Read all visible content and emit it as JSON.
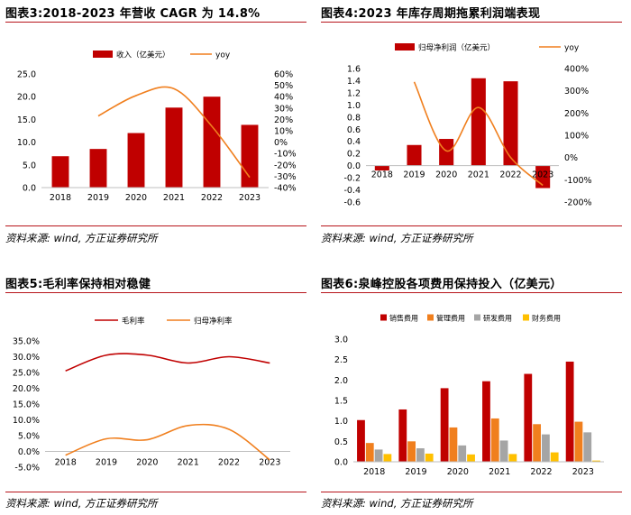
{
  "panels": [
    {
      "title": "图表3:2018-2023 年营收 CAGR 为 14.8%",
      "source": "资料来源: wind, 方正证券研究所"
    },
    {
      "title": "图表4:2023 年库存周期拖累利润端表现",
      "source": "资料来源: wind, 方正证券研究所"
    },
    {
      "title": "图表5:毛利率保持相对稳健",
      "source": "资料来源: wind, 方正证券研究所"
    },
    {
      "title": "图表6:泉峰控股各项费用保持投入（亿美元）",
      "source": "资料来源: wind, 方正证券研究所"
    }
  ],
  "colors": {
    "bar_red": "#c00000",
    "line_orange": "#f07f1e",
    "line_red": "#c00000",
    "rule": "#b7141b",
    "gray": "#a5a5a5",
    "gold": "#ffc000"
  },
  "chart_data": [
    {
      "type": "bar",
      "title": "2018-2023 年营收 CAGR 为 14.8%",
      "categories": [
        "2018",
        "2019",
        "2020",
        "2021",
        "2022",
        "2023"
      ],
      "series": [
        {
          "name": "收入（亿美元）",
          "type": "bar",
          "axis": "left",
          "values": [
            6.9,
            8.5,
            12.0,
            17.6,
            20.0,
            13.8
          ]
        },
        {
          "name": "yoy",
          "type": "line",
          "axis": "right",
          "values": [
            null,
            23,
            41,
            47,
            14,
            -31
          ]
        }
      ],
      "y_left": {
        "min": 0,
        "max": 25,
        "step": 5,
        "ticks": [
          "0.0",
          "5.0",
          "10.0",
          "15.0",
          "20.0",
          "25.0"
        ]
      },
      "y_right": {
        "min": -40,
        "max": 60,
        "step": 10,
        "ticks": [
          "-40%",
          "-30%",
          "-20%",
          "-10%",
          "0%",
          "10%",
          "20%",
          "30%",
          "40%",
          "50%",
          "60%"
        ]
      },
      "legend_position": "top"
    },
    {
      "type": "bar",
      "title": "2023 年库存周期拖累利润端表现",
      "categories": [
        "2018",
        "2019",
        "2020",
        "2021",
        "2022",
        "2023"
      ],
      "series": [
        {
          "name": "归母净利润（亿美元）",
          "type": "bar",
          "axis": "left",
          "values": [
            -0.08,
            0.34,
            0.44,
            1.44,
            1.39,
            -0.37
          ]
        },
        {
          "name": "yoy",
          "type": "line",
          "axis": "right",
          "values": [
            null,
            340,
            30,
            225,
            0,
            -125
          ]
        }
      ],
      "y_left": {
        "min": -0.6,
        "max": 1.6,
        "step": 0.2,
        "ticks": [
          "-0.6",
          "-0.4",
          "-0.2",
          "0.0",
          "0.2",
          "0.4",
          "0.6",
          "0.8",
          "1.0",
          "1.2",
          "1.4",
          "1.6"
        ]
      },
      "y_right": {
        "min": -200,
        "max": 400,
        "step": 100,
        "ticks": [
          "-200%",
          "-100%",
          "0%",
          "100%",
          "200%",
          "300%",
          "400%"
        ]
      },
      "legend_position": "top"
    },
    {
      "type": "line",
      "title": "毛利率保持相对稳健",
      "categories": [
        "2018",
        "2019",
        "2020",
        "2021",
        "2022",
        "2023"
      ],
      "series": [
        {
          "name": "毛利率",
          "values": [
            25.5,
            30.5,
            30.5,
            28.0,
            30.0,
            28.0
          ]
        },
        {
          "name": "归母净利率",
          "values": [
            -1.2,
            4.0,
            3.7,
            8.2,
            7.0,
            -2.7
          ]
        }
      ],
      "y_left": {
        "min": -5,
        "max": 35,
        "step": 5,
        "ticks": [
          "-5.0%",
          "0.0%",
          "5.0%",
          "10.0%",
          "15.0%",
          "20.0%",
          "25.0%",
          "30.0%",
          "35.0%"
        ]
      },
      "legend_position": "top"
    },
    {
      "type": "bar",
      "title": "泉峰控股各项费用保持投入（亿美元）",
      "categories": [
        "2018",
        "2019",
        "2020",
        "2021",
        "2022",
        "2023"
      ],
      "series": [
        {
          "name": "销售费用",
          "values": [
            1.02,
            1.28,
            1.8,
            1.97,
            2.15,
            2.45
          ]
        },
        {
          "name": "管理费用",
          "values": [
            0.46,
            0.5,
            0.84,
            1.06,
            0.92,
            0.98
          ]
        },
        {
          "name": "研发费用",
          "values": [
            0.3,
            0.33,
            0.4,
            0.52,
            0.67,
            0.72
          ]
        },
        {
          "name": "财务费用",
          "values": [
            0.19,
            0.2,
            0.18,
            0.19,
            0.23,
            0.03
          ]
        }
      ],
      "series_colors": [
        "#c00000",
        "#f07f1e",
        "#a5a5a5",
        "#ffc000"
      ],
      "y_left": {
        "min": 0,
        "max": 3,
        "step": 0.5,
        "ticks": [
          "0.0",
          "0.5",
          "1.0",
          "1.5",
          "2.0",
          "2.5",
          "3.0"
        ]
      },
      "legend_position": "top"
    }
  ]
}
